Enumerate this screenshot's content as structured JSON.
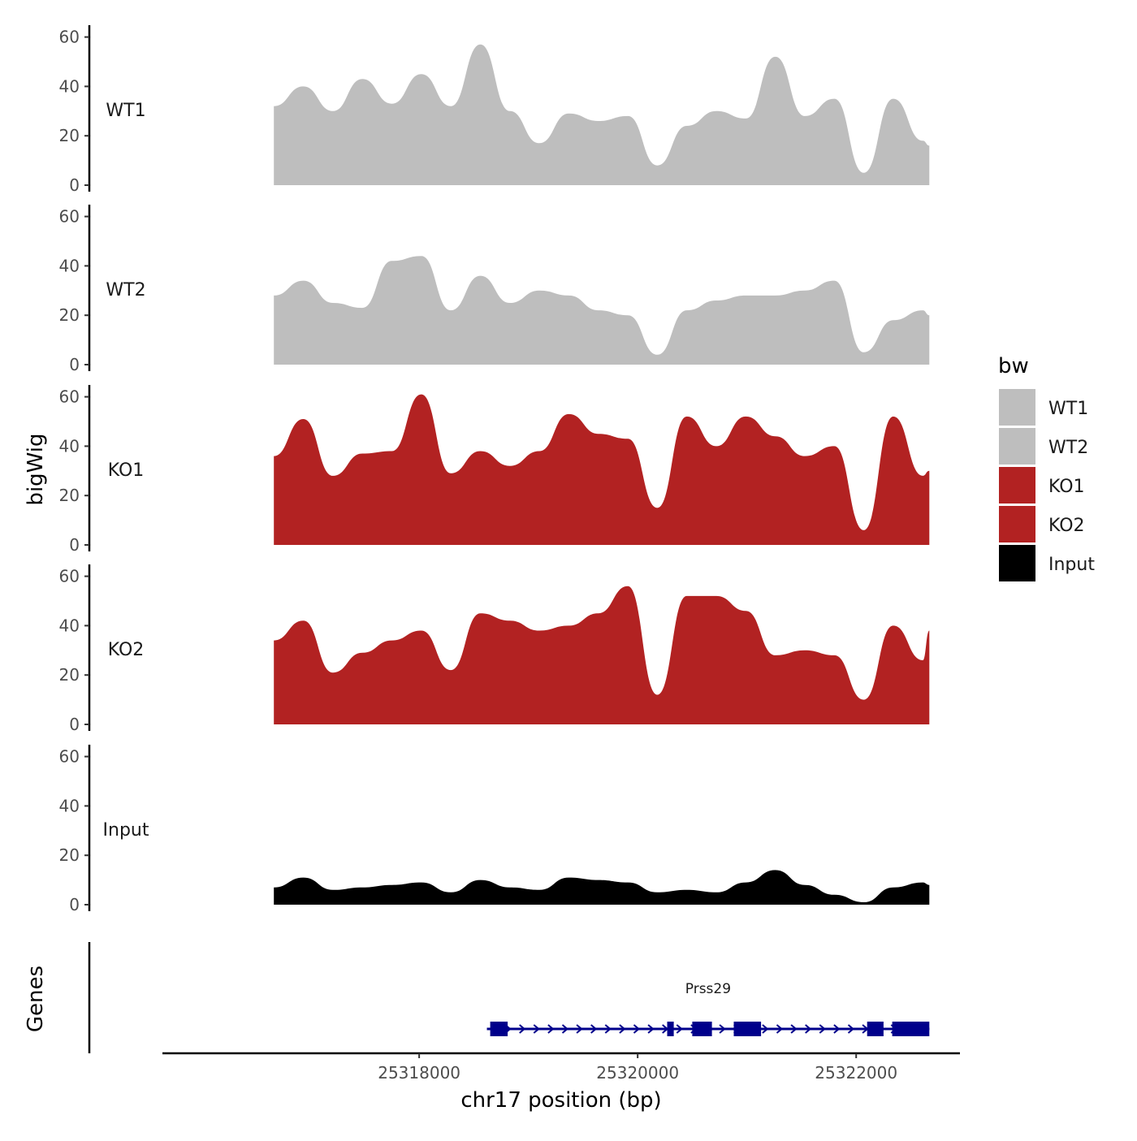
{
  "chart_data": {
    "type": "area",
    "chromosome": "chr17",
    "xlabel": "chr17 position (bp)",
    "ylabel": "bigWig",
    "genes_label": "Genes",
    "xlim": [
      25315650,
      25322950
    ],
    "x_ticks": [
      25318000,
      25320000,
      25322000
    ],
    "x_tick_labels": [
      "25318000",
      "25320000",
      "25322000"
    ],
    "ylim": [
      0,
      65
    ],
    "y_ticks": [
      0,
      20,
      40,
      60
    ],
    "y_tick_labels": [
      "0",
      "20",
      "40",
      "60"
    ],
    "x": [
      25316670,
      25316940,
      25317210,
      25317480,
      25317750,
      25318020,
      25318290,
      25318560,
      25318830,
      25319100,
      25319370,
      25319640,
      25319910,
      25320180,
      25320450,
      25320720,
      25320990,
      25321260,
      25321530,
      25321800,
      25322070,
      25322340,
      25322610,
      25322670
    ],
    "series": [
      {
        "name": "WT1",
        "color": "#bebebe",
        "values": [
          32,
          40,
          30,
          43,
          33,
          45,
          32,
          57,
          30,
          17,
          29,
          26,
          28,
          8,
          24,
          30,
          27,
          52,
          28,
          35,
          5,
          35,
          18,
          16
        ]
      },
      {
        "name": "WT2",
        "color": "#bebebe",
        "values": [
          28,
          34,
          25,
          23,
          42,
          44,
          22,
          36,
          25,
          30,
          28,
          22,
          20,
          4,
          22,
          26,
          28,
          28,
          30,
          34,
          5,
          18,
          22,
          20
        ]
      },
      {
        "name": "KO1",
        "color": "#b22222",
        "values": [
          36,
          51,
          28,
          37,
          38,
          61,
          29,
          38,
          32,
          38,
          53,
          45,
          43,
          15,
          52,
          40,
          52,
          44,
          36,
          40,
          6,
          52,
          28,
          30
        ]
      },
      {
        "name": "KO2",
        "color": "#b22222",
        "values": [
          34,
          42,
          21,
          29,
          34,
          38,
          22,
          45,
          42,
          38,
          40,
          45,
          56,
          12,
          52,
          52,
          46,
          28,
          30,
          28,
          10,
          40,
          26,
          38
        ]
      },
      {
        "name": "Input",
        "color": "#000000",
        "values": [
          7,
          11,
          6,
          7,
          8,
          9,
          5,
          10,
          7,
          6,
          11,
          10,
          9,
          5,
          6,
          5,
          9,
          14,
          8,
          4,
          1,
          7,
          9,
          8
        ]
      }
    ],
    "legend": {
      "title": "bw",
      "position": "right",
      "entries": [
        {
          "label": "WT1",
          "color": "#bebebe"
        },
        {
          "label": "WT2",
          "color": "#bebebe"
        },
        {
          "label": "KO1",
          "color": "#b22222"
        },
        {
          "label": "KO2",
          "color": "#b22222"
        },
        {
          "label": "Input",
          "color": "#000000"
        }
      ]
    },
    "gene": {
      "name": "Prss29",
      "strand": "+",
      "color": "#00008b",
      "start": 25318620,
      "end": 25322670,
      "exons": [
        [
          25318650,
          25318810
        ],
        [
          25320270,
          25320330
        ],
        [
          25320500,
          25320680
        ],
        [
          25320880,
          25321130
        ],
        [
          25322100,
          25322250
        ],
        [
          25322330,
          25322670
        ]
      ]
    }
  }
}
